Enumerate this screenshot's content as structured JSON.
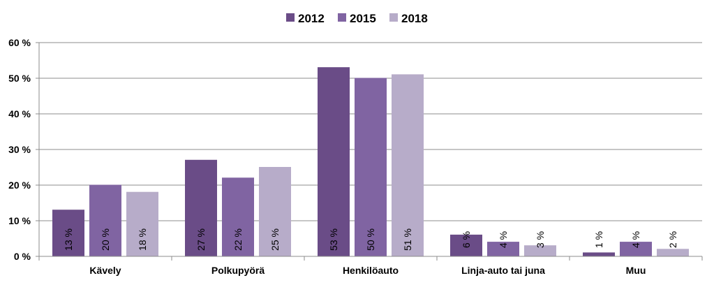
{
  "chart_data": {
    "type": "bar",
    "categories": [
      "Kävely",
      "Polkupyörä",
      "Henkilöauto",
      "Linja-auto tai juna",
      "Muu"
    ],
    "series": [
      {
        "name": "2012",
        "color": "#6a4c87",
        "values": [
          13,
          27,
          53,
          6,
          1
        ],
        "labels": [
          "13 %",
          "27 %",
          "53 %",
          "6 %",
          "1 %"
        ]
      },
      {
        "name": "2015",
        "color": "#8064a2",
        "values": [
          20,
          22,
          50,
          4,
          4
        ],
        "labels": [
          "20 %",
          "22 %",
          "50 %",
          "4 %",
          "4 %"
        ]
      },
      {
        "name": "2018",
        "color": "#b7acc9",
        "values": [
          18,
          25,
          51,
          3,
          2
        ],
        "labels": [
          "18 %",
          "25 %",
          "51 %",
          "3 %",
          "2 %"
        ]
      }
    ],
    "ylim": [
      0,
      60
    ],
    "yticks": [
      0,
      10,
      20,
      30,
      40,
      50,
      60
    ],
    "ytick_labels": [
      "0 %",
      "10 %",
      "20 %",
      "30 %",
      "40 %",
      "50 %",
      "60 %"
    ],
    "grid": true,
    "legend": "top-center"
  }
}
